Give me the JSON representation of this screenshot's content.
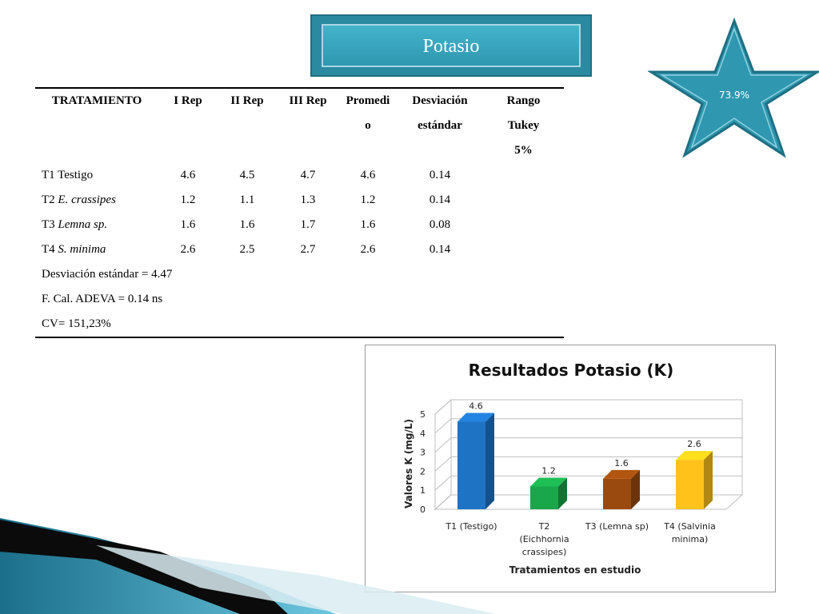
{
  "header": {
    "title": "Potasio"
  },
  "badge": {
    "value": "73.9%"
  },
  "table": {
    "headers": [
      [
        "TRATAMIENTO"
      ],
      [
        "I Rep"
      ],
      [
        "II Rep"
      ],
      [
        "III Rep"
      ],
      [
        "Promedi",
        "o"
      ],
      [
        "Desviación",
        "estándar"
      ],
      [
        "Rango",
        "Tukey",
        "5%"
      ]
    ],
    "rows": [
      {
        "code": "T1",
        "name": "Testigo",
        "italic": false,
        "rep1": "4.6",
        "rep2": "4.5",
        "rep3": "4.7",
        "promedio": "4.6",
        "desviacion": "0.14",
        "tukey": ""
      },
      {
        "code": "T2",
        "name": "E. crassipes",
        "italic": true,
        "rep1": "1.2",
        "rep2": "1.1",
        "rep3": "1.3",
        "promedio": "1.2",
        "desviacion": "0.14",
        "tukey": ""
      },
      {
        "code": "T3",
        "name": "Lemna sp.",
        "italic": true,
        "rep1": "1.6",
        "rep2": "1.6",
        "rep3": "1.7",
        "promedio": "1.6",
        "desviacion": "0.08",
        "tukey": ""
      },
      {
        "code": "T4",
        "name": "S. minima",
        "italic": true,
        "rep1": "2.6",
        "rep2": "2.5",
        "rep3": "2.7",
        "promedio": "2.6",
        "desviacion": "0.14",
        "tukey": ""
      }
    ],
    "notes": [
      "Desviación estándar = 4.47",
      "F. Cal. ADEVA = 0.14 ns",
      "CV= 151,23%"
    ]
  },
  "chart_data": {
    "type": "bar",
    "title": "Resultados Potasio (K)",
    "xlabel": "Tratamientos en estudio",
    "ylabel": "Valores K (mg/L)",
    "ylim": [
      0,
      5
    ],
    "yticks": [
      0,
      1,
      2,
      3,
      4,
      5
    ],
    "grid": true,
    "legend": "none",
    "categories": [
      [
        "T1 (Testigo)"
      ],
      [
        "T2",
        "(Eichhornia",
        "crassipes)"
      ],
      [
        "T3 (Lemna sp)"
      ],
      [
        "T4 (Salvinia",
        "minima)"
      ]
    ],
    "values": [
      4.6,
      1.2,
      1.6,
      2.6
    ],
    "data_labels": [
      "4.6",
      "1.2",
      "1.6",
      "2.6"
    ],
    "colors": [
      "#1f73c4",
      "#1aa64a",
      "#9a4a0e",
      "#ffc21a"
    ]
  },
  "theme": {
    "accent": "#2b8aa0",
    "accent_light": "#44b3cc"
  }
}
